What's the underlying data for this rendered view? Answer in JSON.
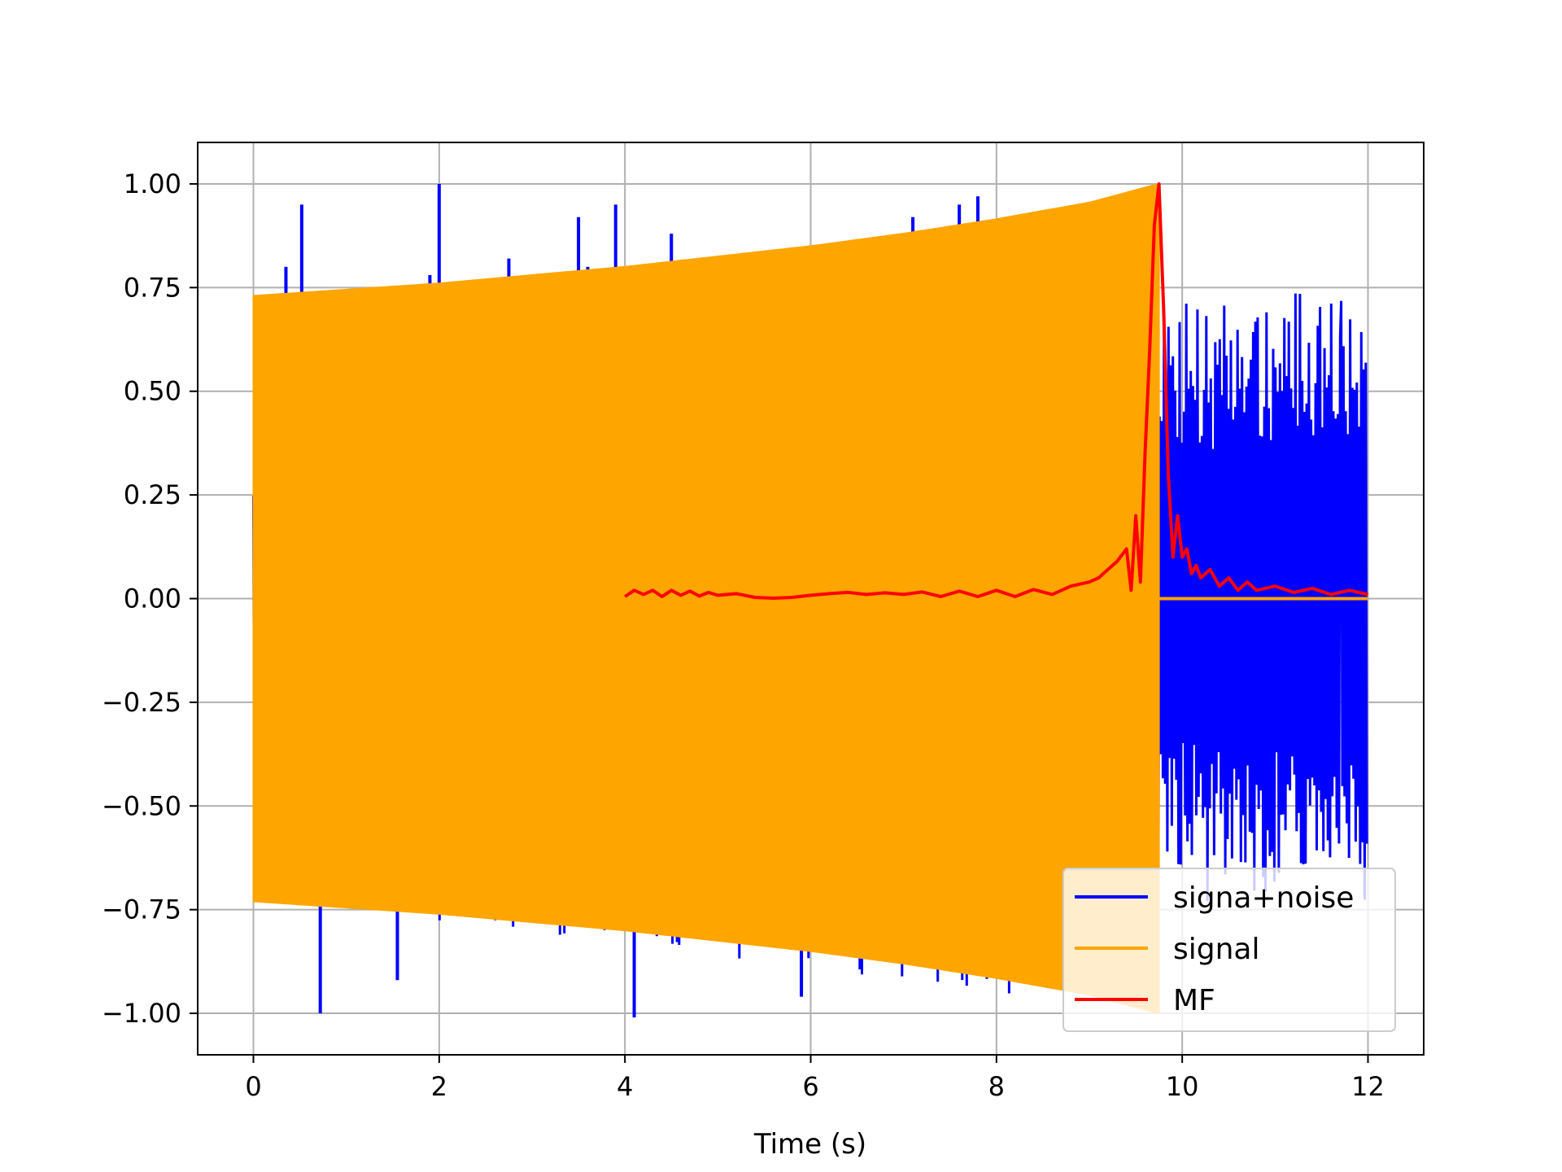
{
  "chart_data": {
    "type": "line",
    "title": "",
    "xlabel": "Time (s)",
    "ylabel": "",
    "xlim": [
      -0.6,
      12.6
    ],
    "ylim": [
      -1.1,
      1.1
    ],
    "xticks": [
      0,
      2,
      4,
      6,
      8,
      10,
      12
    ],
    "xtick_labels": [
      "0",
      "2",
      "4",
      "6",
      "8",
      "10",
      "12"
    ],
    "yticks": [
      1.0,
      0.75,
      0.5,
      0.25,
      0.0,
      -0.25,
      -0.5,
      -0.75,
      -1.0
    ],
    "ytick_labels": [
      "1.00",
      "0.75",
      "0.50",
      "0.25",
      "0.00",
      "−0.25",
      "−0.50",
      "−0.75",
      "−1.00"
    ],
    "grid": true,
    "legend_position": "lower-right",
    "series": [
      {
        "name": "signa+noise",
        "color": "#0000ff",
        "envelope_x": [
          0,
          9.75,
          9.75,
          12
        ],
        "envelope_upper": [
          0.45,
          1.0,
          0.75,
          0.75
        ],
        "envelope_lower": [
          -0.72,
          -1.0,
          -0.75,
          -0.75
        ],
        "spikes_x": [
          0.35,
          0.52,
          0.72,
          1.55,
          1.9,
          2.0,
          2.75,
          3.5,
          3.6,
          3.9,
          4.1,
          4.5,
          5.9,
          7.1,
          7.6,
          7.8
        ],
        "spikes_y": [
          0.8,
          0.95,
          -1.0,
          -0.92,
          0.78,
          1.0,
          0.82,
          0.92,
          0.8,
          0.95,
          -1.01,
          0.88,
          -0.96,
          0.92,
          0.95,
          0.97
        ]
      },
      {
        "name": "signal",
        "color": "#ffa500",
        "envelope_x": [
          0,
          1,
          2,
          3,
          4,
          5,
          6,
          7,
          8,
          9,
          9.75
        ],
        "envelope_amplitude": [
          0.73,
          0.745,
          0.76,
          0.78,
          0.8,
          0.825,
          0.85,
          0.88,
          0.915,
          0.955,
          1.0
        ],
        "after_end_value": 0.0,
        "end_x": 12
      },
      {
        "name": "MF",
        "color": "#ff0000",
        "x": [
          4.0,
          4.1,
          4.2,
          4.3,
          4.4,
          4.5,
          4.6,
          4.7,
          4.8,
          4.9,
          5.0,
          5.2,
          5.4,
          5.6,
          5.8,
          6.0,
          6.2,
          6.4,
          6.6,
          6.8,
          7.0,
          7.2,
          7.4,
          7.6,
          7.8,
          8.0,
          8.2,
          8.4,
          8.6,
          8.8,
          9.0,
          9.1,
          9.2,
          9.3,
          9.4,
          9.45,
          9.5,
          9.55,
          9.6,
          9.65,
          9.7,
          9.75,
          9.8,
          9.85,
          9.9,
          9.95,
          10.0,
          10.05,
          10.1,
          10.15,
          10.2,
          10.3,
          10.4,
          10.5,
          10.6,
          10.7,
          10.8,
          11.0,
          11.2,
          11.4,
          11.6,
          11.8,
          12.0
        ],
        "y": [
          0.005,
          0.02,
          0.01,
          0.02,
          0.005,
          0.02,
          0.008,
          0.018,
          0.006,
          0.015,
          0.008,
          0.012,
          0.003,
          0.001,
          0.003,
          0.008,
          0.012,
          0.015,
          0.01,
          0.014,
          0.01,
          0.016,
          0.005,
          0.018,
          0.005,
          0.02,
          0.005,
          0.022,
          0.01,
          0.03,
          0.04,
          0.05,
          0.07,
          0.09,
          0.12,
          0.02,
          0.2,
          0.04,
          0.35,
          0.6,
          0.9,
          1.0,
          0.7,
          0.3,
          0.1,
          0.2,
          0.1,
          0.12,
          0.06,
          0.08,
          0.05,
          0.07,
          0.03,
          0.05,
          0.02,
          0.04,
          0.02,
          0.03,
          0.015,
          0.025,
          0.01,
          0.02,
          0.01
        ]
      }
    ]
  }
}
